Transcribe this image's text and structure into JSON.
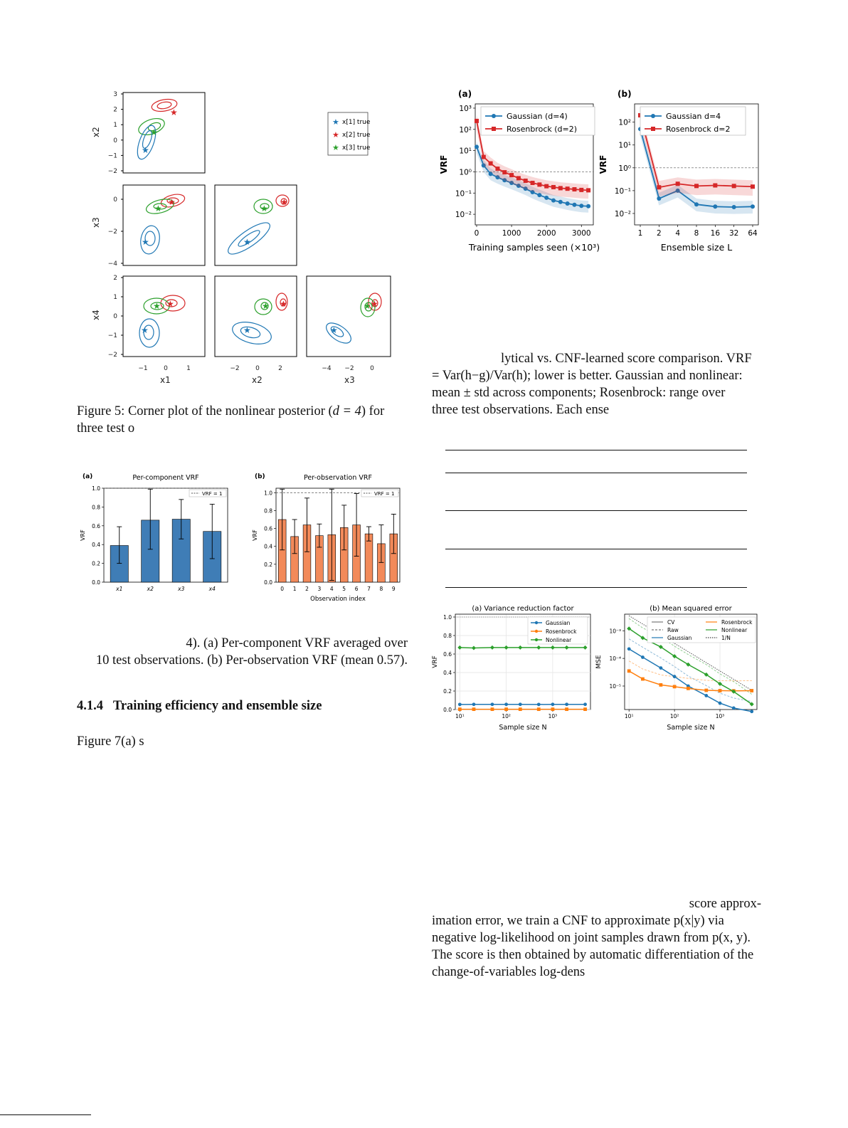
{
  "figure5": {
    "caption_prefix": "Figure 5: Corner plot of the nonlinear posterior (",
    "caption_math": "d = 4",
    "caption_suffix": ") for",
    "caption_line2": "three test o",
    "y_labels": [
      "x2",
      "x3",
      "x4"
    ],
    "x_labels": [
      "x1",
      "x2",
      "x3"
    ],
    "legend": [
      "x[1] true",
      "x[2] true",
      "x[3] true"
    ],
    "colors": {
      "obs1": "#1f77b4",
      "obs2": "#d62728",
      "obs3": "#2ca02c"
    },
    "ticks": {
      "x2_y": [
        "3",
        "2",
        "1",
        "0",
        "−1",
        "−2"
      ],
      "x3_y": [
        "0",
        "−2",
        "−4"
      ],
      "x4_y": [
        "2",
        "1",
        "0",
        "−1",
        "−2"
      ],
      "x1_x": [
        "−1",
        "0",
        "1"
      ],
      "x2_x": [
        "−2",
        "0",
        "2"
      ],
      "x3_x": [
        "−4",
        "−2",
        "0"
      ]
    }
  },
  "figure6": {
    "caption_line1": "4). (a) Per-component VRF averaged over",
    "caption_line2": "10 test observations. (b) Per-observation VRF (mean 0.57).",
    "chart_data": [
      {
        "type": "bar",
        "panel": "(a)",
        "title": "Per-component VRF",
        "categories": [
          "x1",
          "x2",
          "x3",
          "x4"
        ],
        "values": [
          0.39,
          0.66,
          0.67,
          0.54
        ],
        "err_low": [
          0.2,
          0.35,
          0.46,
          0.25
        ],
        "err_high": [
          0.59,
          0.99,
          0.88,
          0.83
        ],
        "ylabel": "VRF",
        "ylim": [
          0,
          1.0
        ],
        "yticks": [
          "0.0",
          "0.2",
          "0.4",
          "0.6",
          "0.8",
          "1.0"
        ],
        "reference": "VRF = 1",
        "color": "#3f7db6"
      },
      {
        "type": "bar",
        "panel": "(b)",
        "title": "Per-observation VRF",
        "categories": [
          "0",
          "1",
          "2",
          "3",
          "4",
          "5",
          "6",
          "7",
          "8",
          "9"
        ],
        "values": [
          0.7,
          0.51,
          0.64,
          0.52,
          0.53,
          0.61,
          0.64,
          0.54,
          0.43,
          0.54
        ],
        "err_low": [
          0.36,
          0.32,
          0.34,
          0.39,
          0.02,
          0.36,
          0.29,
          0.46,
          0.22,
          0.32
        ],
        "err_high": [
          1.04,
          0.7,
          0.94,
          0.65,
          1.04,
          0.86,
          0.99,
          0.62,
          0.64,
          0.76
        ],
        "xlabel": "Observation index",
        "ylabel": "VRF",
        "ylim": [
          0,
          1.05
        ],
        "yticks": [
          "0.0",
          "0.2",
          "0.4",
          "0.6",
          "0.8",
          "1.0"
        ],
        "reference": "VRF = 1",
        "color": "#f28a5a"
      }
    ]
  },
  "figure7": {
    "caption_line1": "lytical vs. CNF-learned score comparison. VRF",
    "caption_line2": "= Var(h−g)/Var(h); lower is better. Gaussian and nonlinear:",
    "caption_line3": "mean ± std across components; Rosenbrock: range over",
    "caption_line4": "three test observations. Each ense",
    "chart_data": [
      {
        "type": "line",
        "panel": "(a)",
        "xlabel": "Training samples seen (×10³)",
        "ylabel": "VRF",
        "y_scale": "log",
        "xticks": [
          "0",
          "1000",
          "2000",
          "3000"
        ],
        "yticks": [
          "10³",
          "10²",
          "10¹",
          "10⁰",
          "10⁻¹",
          "10⁻²"
        ],
        "series": [
          {
            "name": "Gaussian (d=4)",
            "x": [
              0,
              200,
              400,
              600,
              800,
              1000,
              1200,
              1400,
              1600,
              1800,
              2000,
              2200,
              2400,
              2600,
              2800,
              3000,
              3200
            ],
            "y": [
              15,
              2,
              0.8,
              0.55,
              0.4,
              0.3,
              0.22,
              0.16,
              0.11,
              0.08,
              0.06,
              0.045,
              0.038,
              0.032,
              0.028,
              0.025,
              0.024
            ],
            "color": "#1f77b4"
          },
          {
            "name": "Rosenbrock (d=2)",
            "x": [
              0,
              200,
              400,
              600,
              800,
              1000,
              1200,
              1400,
              1600,
              1800,
              2000,
              2200,
              2400,
              2600,
              2800,
              3000,
              3200
            ],
            "y": [
              250,
              5,
              2.5,
              1.4,
              0.95,
              0.7,
              0.5,
              0.38,
              0.3,
              0.25,
              0.21,
              0.19,
              0.17,
              0.16,
              0.15,
              0.14,
              0.135
            ],
            "color": "#d62728"
          }
        ],
        "reference": 1
      },
      {
        "type": "line",
        "panel": "(b)",
        "xlabel": "Ensemble size L",
        "ylabel": "VRF",
        "y_scale": "log",
        "categories": [
          "1",
          "2",
          "4",
          "8",
          "16",
          "32",
          "64"
        ],
        "yticks": [
          "10²",
          "10¹",
          "10⁰",
          "10⁻¹",
          "10⁻²"
        ],
        "series": [
          {
            "name": "Gaussian d=4",
            "values": [
              50,
              0.045,
              0.1,
              0.025,
              0.02,
              0.019,
              0.02
            ],
            "color": "#1f77b4"
          },
          {
            "name": "Rosenbrock d=2",
            "values": [
              200,
              0.14,
              0.2,
              0.16,
              0.17,
              0.16,
              0.15
            ],
            "color": "#d62728"
          }
        ],
        "reference": 1
      }
    ]
  },
  "figure8": {
    "chart_data": [
      {
        "type": "line",
        "title": "(a) Variance reduction factor",
        "xlabel": "Sample size N",
        "ylabel": "VRF",
        "x_scale": "log",
        "x": [
          10,
          20,
          50,
          100,
          200,
          500,
          1000,
          2000,
          5000
        ],
        "ylim": [
          0,
          1.0
        ],
        "yticks": [
          "0.0",
          "0.2",
          "0.4",
          "0.6",
          "0.8",
          "1.0"
        ],
        "xticks": [
          "10¹",
          "10²",
          "10³"
        ],
        "series": [
          {
            "name": "Gaussian",
            "values": [
              0.055,
              0.056,
              0.056,
              0.056,
              0.056,
              0.055,
              0.056,
              0.056,
              0.056
            ],
            "color": "#1f77b4"
          },
          {
            "name": "Rosenbrock",
            "values": [
              0.003,
              0.003,
              0.003,
              0.003,
              0.003,
              0.003,
              0.003,
              0.003,
              0.003
            ],
            "color": "#ff7f0e"
          },
          {
            "name": "Nonlinear",
            "values": [
              0.67,
              0.665,
              0.67,
              0.67,
              0.67,
              0.67,
              0.67,
              0.67,
              0.67
            ],
            "color": "#2ca02c"
          }
        ]
      },
      {
        "type": "line",
        "title": "(b) Mean squared error",
        "xlabel": "Sample size N",
        "ylabel": "MSE",
        "x_scale": "log",
        "y_scale": "log",
        "x": [
          10,
          20,
          50,
          100,
          200,
          500,
          1000,
          2000,
          5000
        ],
        "xticks": [
          "10¹",
          "10²",
          "10³"
        ],
        "yticks": [
          "10⁻³",
          "10⁻⁴",
          "10⁻⁵"
        ],
        "legend": [
          "CV",
          "Raw",
          "Gaussian",
          "Rosenbrock",
          "Nonlinear",
          "1/N"
        ],
        "series": [
          {
            "name": "Gaussian",
            "values": [
              0.00022,
              0.00011,
              4.5e-05,
              2.2e-05,
              1e-05,
              4.5e-06,
              2.4e-06,
              1.6e-06,
              1.2e-06
            ],
            "color": "#1f77b4"
          },
          {
            "name": "Rosenbrock",
            "values": [
              3.5e-05,
              1.8e-05,
              1.1e-05,
              9.5e-06,
              8.2e-06,
              7e-06,
              6.8e-06,
              6.7e-06,
              6.8e-06
            ],
            "color": "#ff7f0e"
          },
          {
            "name": "Nonlinear",
            "values": [
              0.0012,
              0.00055,
              0.00026,
              0.00012,
              6e-05,
              2.6e-05,
              1.2e-05,
              6.3e-06,
              2.2e-06
            ],
            "color": "#2ca02c"
          }
        ]
      }
    ]
  },
  "text": {
    "section_number": "4.1.4",
    "section_title": "Training efficiency and ensemble size",
    "fig7_ref": "Figure 7(a) s",
    "para_line1": "score approx-",
    "para_line2": "imation error, we train a CNF to approximate p(x|y) via",
    "para_line3": "negative log-likelihood on joint samples drawn from p(x, y).",
    "para_line4": "The score is then obtained by automatic differentiation of the",
    "para_line5": "change-of-variables log-dens"
  }
}
